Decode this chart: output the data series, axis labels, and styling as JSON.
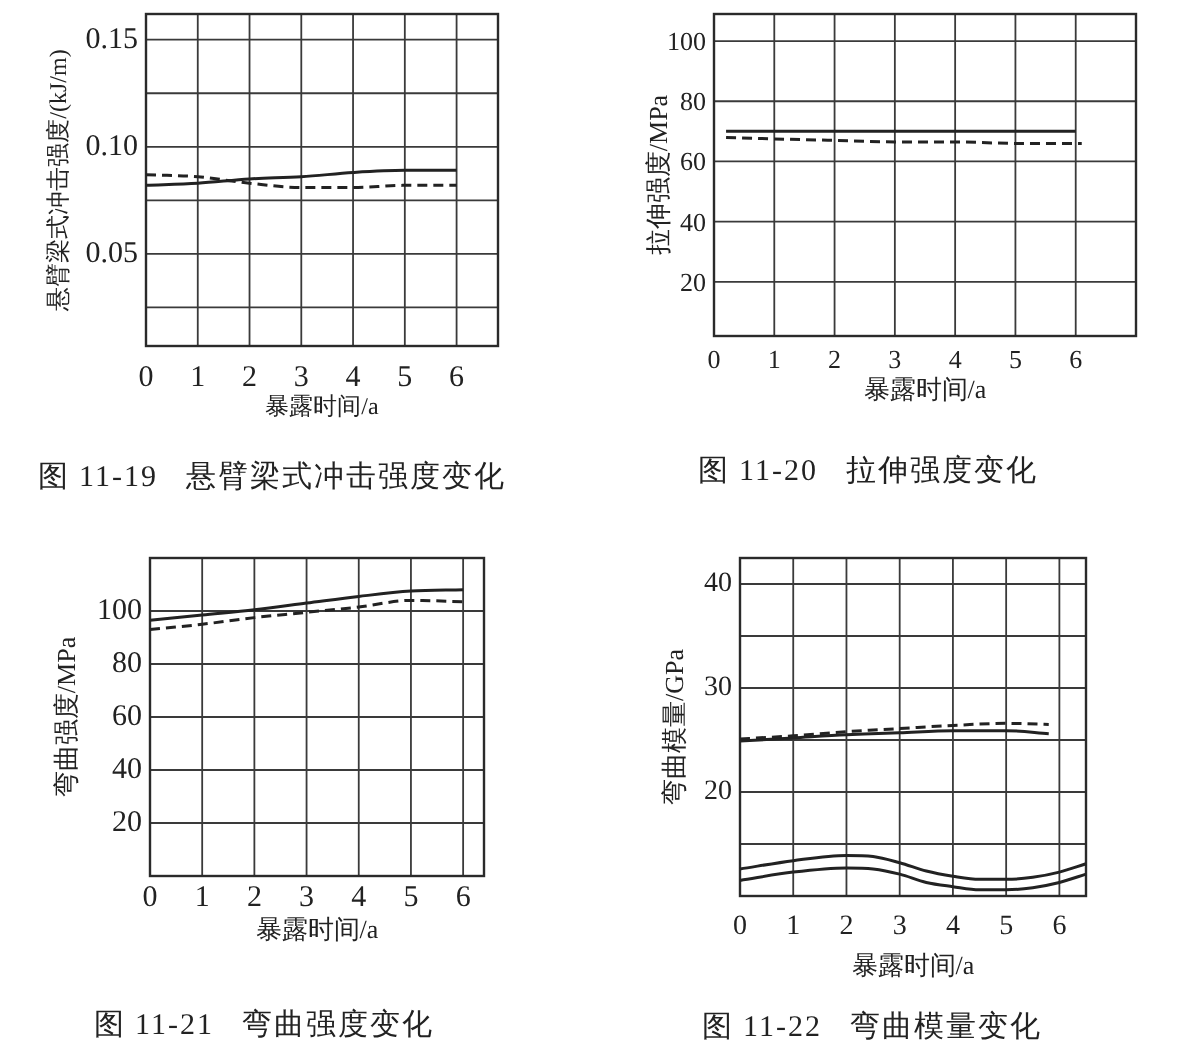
{
  "chart_data": [
    {
      "type": "line",
      "xlabel": "暴露时间/a",
      "ylabel": "悬臂梁式冲击强度/(kJ/m)",
      "annotations": [
        "图 11-19   悬臂梁式冲击强度变化"
      ],
      "xlim": [
        0,
        6.8
      ],
      "xticks": [
        0,
        1,
        2,
        3,
        4,
        5,
        6
      ],
      "ylim": [
        0.007,
        0.162
      ],
      "yticks": [
        {
          "value": 0.025,
          "label": null
        },
        {
          "value": 0.05,
          "label": "0.05"
        },
        {
          "value": 0.075,
          "label": null
        },
        {
          "value": 0.1,
          "label": "0.10"
        },
        {
          "value": 0.125,
          "label": null
        },
        {
          "value": 0.15,
          "label": "0.15"
        }
      ],
      "grid": true,
      "series": [
        {
          "color": "#222222",
          "line_style": "solid",
          "x": [
            0,
            1,
            2,
            3,
            4,
            5,
            6
          ],
          "values": [
            0.082,
            0.083,
            0.085,
            0.086,
            0.088,
            0.089,
            0.089
          ]
        },
        {
          "color": "#222222",
          "line_style": "dashed",
          "x": [
            0,
            1,
            2,
            3,
            4,
            5,
            6
          ],
          "values": [
            0.087,
            0.086,
            0.083,
            0.081,
            0.081,
            0.082,
            0.082
          ]
        }
      ]
    },
    {
      "type": "line",
      "xlabel": "暴露时间/a",
      "ylabel": "拉伸强度/MPa",
      "annotations": [
        "图 11-20   拉伸强度变化"
      ],
      "xlim": [
        0,
        7
      ],
      "xticks": [
        0,
        1,
        2,
        3,
        4,
        5,
        6
      ],
      "ylim": [
        2,
        109
      ],
      "yticks": [
        20,
        40,
        60,
        80,
        100
      ],
      "grid": true,
      "series": [
        {
          "color": "#222222",
          "line_style": "solid",
          "x": [
            0.2,
            1,
            2,
            3,
            4,
            5,
            6
          ],
          "values": [
            70,
            70,
            70,
            70,
            70,
            70,
            70
          ]
        },
        {
          "color": "#222222",
          "line_style": "dashed",
          "x": [
            0.2,
            1,
            2,
            3,
            4,
            5,
            6.1
          ],
          "values": [
            68,
            67.5,
            67,
            66.5,
            66.5,
            66,
            66
          ]
        }
      ]
    },
    {
      "type": "line",
      "xlabel": "暴露时间/a",
      "ylabel": "弯曲强度/MPa",
      "annotations": [
        "图 11-21   弯曲强度变化"
      ],
      "xlim": [
        0,
        6.4
      ],
      "xticks": [
        0,
        1,
        2,
        3,
        4,
        5,
        6
      ],
      "ylim": [
        0,
        120
      ],
      "yticks": [
        20,
        40,
        60,
        80,
        100
      ],
      "grid": true,
      "series": [
        {
          "color": "#222222",
          "line_style": "solid",
          "x": [
            0,
            1,
            2,
            3,
            4,
            5,
            6
          ],
          "values": [
            96.5,
            98.5,
            100.5,
            103,
            105.5,
            107.5,
            108
          ]
        },
        {
          "color": "#222222",
          "line_style": "dashed",
          "x": [
            0,
            1,
            2,
            3,
            4,
            5,
            6
          ],
          "values": [
            93,
            95,
            97.5,
            99.5,
            101.5,
            104,
            103.5
          ]
        }
      ]
    },
    {
      "type": "line",
      "xlabel": "暴露时间/a",
      "ylabel": "弯曲模量/GPa",
      "annotations": [
        "图 11-22   弯曲模量变化"
      ],
      "xlim": [
        0,
        6.5
      ],
      "xticks": [
        0,
        1,
        2,
        3,
        4,
        5,
        6
      ],
      "ylim": [
        10,
        42.5
      ],
      "yticks": [
        {
          "value": 15,
          "label": null
        },
        20,
        {
          "value": 25,
          "label": null
        },
        30,
        {
          "value": 35,
          "label": null
        },
        40
      ],
      "grid": true,
      "series": [
        {
          "color": "#222222",
          "line_style": "solid",
          "x": [
            0,
            1,
            2,
            3,
            4,
            5,
            5.8
          ],
          "values": [
            24.9,
            25.2,
            25.5,
            25.7,
            25.9,
            25.9,
            25.6
          ]
        },
        {
          "color": "#222222",
          "line_style": "dashed",
          "x": [
            0,
            1,
            2,
            3,
            4,
            5,
            5.8
          ],
          "values": [
            25.1,
            25.4,
            25.8,
            26.1,
            26.4,
            26.6,
            26.5
          ]
        },
        {
          "color": "#222222",
          "line_style": "solid",
          "x": [
            0,
            1,
            2,
            2.5,
            3,
            3.5,
            4,
            4.5,
            5,
            5.5,
            6,
            6.5
          ],
          "values": [
            12.6,
            13.4,
            13.9,
            13.8,
            13.2,
            12.4,
            11.9,
            11.6,
            11.6,
            11.8,
            12.3,
            13.1
          ]
        },
        {
          "color": "#222222",
          "line_style": "solid",
          "x": [
            0,
            1,
            2,
            2.5,
            3,
            3.5,
            4,
            4.5,
            5,
            5.5,
            6,
            6.5
          ],
          "values": [
            11.5,
            12.3,
            12.7,
            12.6,
            12.1,
            11.3,
            10.9,
            10.6,
            10.6,
            10.8,
            11.3,
            12.1
          ]
        }
      ]
    }
  ]
}
